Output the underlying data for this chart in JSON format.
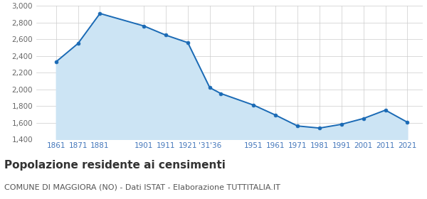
{
  "years": [
    1861,
    1871,
    1881,
    1901,
    1911,
    1921,
    1931,
    1936,
    1951,
    1961,
    1971,
    1981,
    1991,
    2001,
    2011,
    2021
  ],
  "population": [
    2330,
    2550,
    2910,
    2760,
    2650,
    2560,
    2020,
    1950,
    1810,
    1690,
    1560,
    1535,
    1580,
    1650,
    1750,
    1605
  ],
  "line_color": "#1a6ab5",
  "fill_color": "#cce4f4",
  "marker_color": "#1a6ab5",
  "grid_color": "#cccccc",
  "background_color": "#ffffff",
  "ylim": [
    1400,
    3000
  ],
  "yticks": [
    1400,
    1600,
    1800,
    2000,
    2200,
    2400,
    2600,
    2800,
    3000
  ],
  "x_tick_positions": [
    1861,
    1871,
    1881,
    1901,
    1911,
    1921,
    1931,
    1951,
    1961,
    1971,
    1981,
    1991,
    2001,
    2011,
    2021
  ],
  "x_tick_labels": [
    "1861",
    "1871",
    "1881",
    "1901",
    "1911",
    "1921",
    "'31'36",
    "1951",
    "1961",
    "1971",
    "1981",
    "1991",
    "2001",
    "2011",
    "2021"
  ],
  "xlim_left": 1852,
  "xlim_right": 2028,
  "title": "Popolazione residente ai censimenti",
  "subtitle": "COMUNE DI MAGGIORA (NO) - Dati ISTAT - Elaborazione TUTTITALIA.IT",
  "title_fontsize": 11,
  "subtitle_fontsize": 8,
  "title_color": "#333333",
  "subtitle_color": "#555555",
  "axis_label_color": "#4477bb",
  "ytick_color": "#666666",
  "ytick_fontsize": 7.5,
  "xtick_fontsize": 7.5
}
